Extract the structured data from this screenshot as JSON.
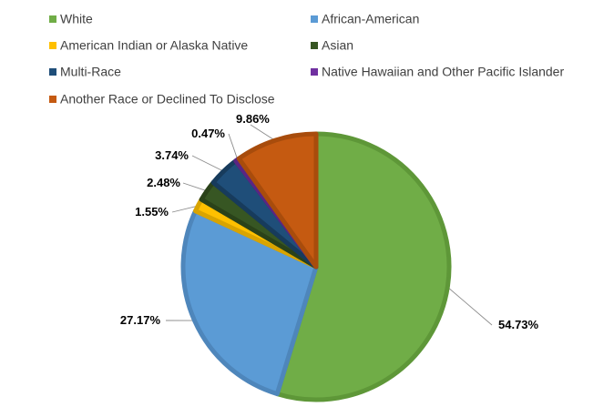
{
  "chart_data": {
    "type": "pie",
    "title": "",
    "legend_position": "top",
    "categories": [
      "White",
      "African-American",
      "American Indian or Alaska Native",
      "Asian",
      "Multi-Race",
      "Native Hawaiian and Other Pacific Islander",
      "Another Race or Declined To Disclose"
    ],
    "values": [
      54.73,
      27.17,
      1.55,
      2.48,
      3.74,
      0.47,
      9.86
    ],
    "value_labels": [
      "54.73%",
      "27.17%",
      "1.55%",
      "2.48%",
      "3.74%",
      "0.47%",
      "9.86%"
    ],
    "colors": [
      "#70AD47",
      "#5B9BD5",
      "#FFC000",
      "#375623",
      "#1F4E79",
      "#7030A0",
      "#C55A11"
    ],
    "border_colors": [
      "#5E9738",
      "#4E86BB",
      "#D9A400",
      "#2A4219",
      "#173B5C",
      "#5A2583",
      "#A84C0C"
    ]
  }
}
